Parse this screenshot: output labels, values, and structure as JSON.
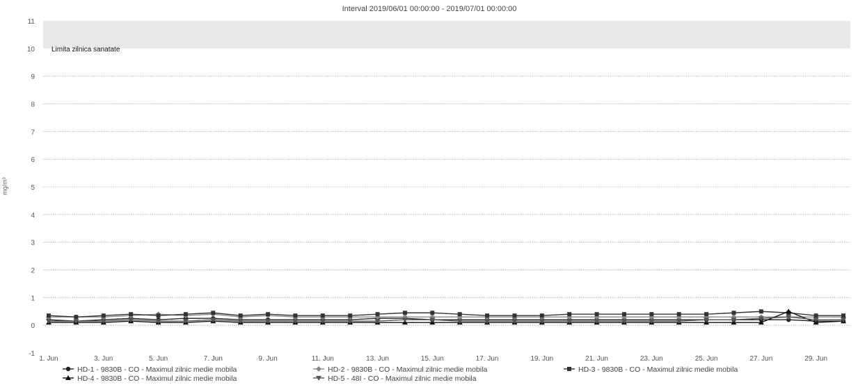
{
  "chart_data": {
    "type": "line",
    "title": "Interval 2019/06/01 00:00:00 - 2019/07/01 00:00:00",
    "ylabel": "mg/m³",
    "xlabel": "",
    "ylim": [
      -1,
      11
    ],
    "yticks": [
      "-1",
      "0",
      "1",
      "2",
      "3",
      "4",
      "5",
      "6",
      "7",
      "8",
      "9",
      "10",
      "11"
    ],
    "grid": true,
    "legend_position": "bottom",
    "x_tick_labels": [
      "1. Jun",
      "3. Jun",
      "5. Jun",
      "7. Jun",
      "9. Jun",
      "11. Jun",
      "13. Jun",
      "15. Jun",
      "17. Jun",
      "19. Jun",
      "21. Jun",
      "23. Jun",
      "25. Jun",
      "27. Jun",
      "29. Jun"
    ],
    "x": [
      "1. Jun",
      "2. Jun",
      "3. Jun",
      "4. Jun",
      "5. Jun",
      "6. Jun",
      "7. Jun",
      "8. Jun",
      "9. Jun",
      "10. Jun",
      "11. Jun",
      "12. Jun",
      "13. Jun",
      "14. Jun",
      "15. Jun",
      "16. Jun",
      "17. Jun",
      "18. Jun",
      "19. Jun",
      "20. Jun",
      "21. Jun",
      "22. Jun",
      "23. Jun",
      "24. Jun",
      "25. Jun",
      "26. Jun",
      "27. Jun",
      "28. Jun",
      "29. Jun",
      "30. Jun"
    ],
    "plot_band": {
      "from": 10,
      "to": 11,
      "label": "Limita zilnica sanatate",
      "color": "#e8e8e8"
    },
    "series": [
      {
        "name": "HD-1 - 9830B - CO - Maximul zilnic medie mobila",
        "marker": "circle",
        "color": "#222222",
        "values": [
          0.2,
          0.15,
          0.2,
          0.25,
          0.2,
          0.25,
          0.25,
          0.2,
          0.2,
          0.2,
          0.2,
          0.2,
          0.25,
          0.25,
          0.2,
          0.2,
          0.2,
          0.2,
          0.2,
          0.2,
          0.2,
          0.2,
          0.2,
          0.2,
          0.2,
          0.2,
          0.2,
          0.2,
          0.15,
          0.15
        ]
      },
      {
        "name": "HD-2 - 9830B - CO - Maximul zilnic medie mobila",
        "marker": "diamond",
        "color": "#888888",
        "values": [
          0.3,
          0.3,
          0.3,
          0.35,
          0.4,
          0.35,
          0.4,
          0.3,
          0.35,
          0.3,
          0.3,
          0.3,
          0.3,
          0.3,
          0.3,
          0.3,
          0.3,
          0.3,
          0.3,
          0.3,
          0.3,
          0.3,
          0.3,
          0.3,
          0.3,
          0.3,
          0.3,
          0.3,
          0.3,
          0.3
        ]
      },
      {
        "name": "HD-3 - 9830B - CO - Maximul zilnic medie mobila",
        "marker": "square",
        "color": "#333333",
        "values": [
          0.35,
          0.3,
          0.35,
          0.4,
          0.35,
          0.4,
          0.45,
          0.35,
          0.4,
          0.35,
          0.35,
          0.35,
          0.4,
          0.45,
          0.45,
          0.4,
          0.35,
          0.35,
          0.35,
          0.4,
          0.4,
          0.4,
          0.4,
          0.4,
          0.4,
          0.45,
          0.5,
          0.45,
          0.35,
          0.35
        ]
      },
      {
        "name": "HD-4 - 9830B - CO - Maximul zilnic medie mobila",
        "marker": "triangle",
        "color": "#111111",
        "values": [
          0.1,
          0.1,
          0.1,
          0.15,
          0.1,
          0.1,
          0.15,
          0.1,
          0.1,
          0.1,
          0.1,
          0.1,
          0.1,
          0.1,
          0.1,
          0.1,
          0.1,
          0.1,
          0.1,
          0.1,
          0.1,
          0.1,
          0.1,
          0.1,
          0.1,
          0.1,
          0.1,
          0.5,
          0.1,
          0.15
        ]
      },
      {
        "name": "HD-5 - 48I - CO - Maximul zilnic medie mobila",
        "marker": "triangle-down",
        "color": "#555555",
        "values": [
          0.15,
          0.15,
          0.15,
          0.2,
          0.15,
          0.15,
          0.2,
          0.15,
          0.15,
          0.15,
          0.15,
          0.15,
          0.15,
          0.2,
          0.2,
          0.15,
          0.15,
          0.15,
          0.15,
          0.15,
          0.15,
          0.15,
          0.15,
          0.15,
          0.2,
          0.2,
          0.25,
          0.3,
          0.2,
          0.2
        ]
      }
    ]
  }
}
